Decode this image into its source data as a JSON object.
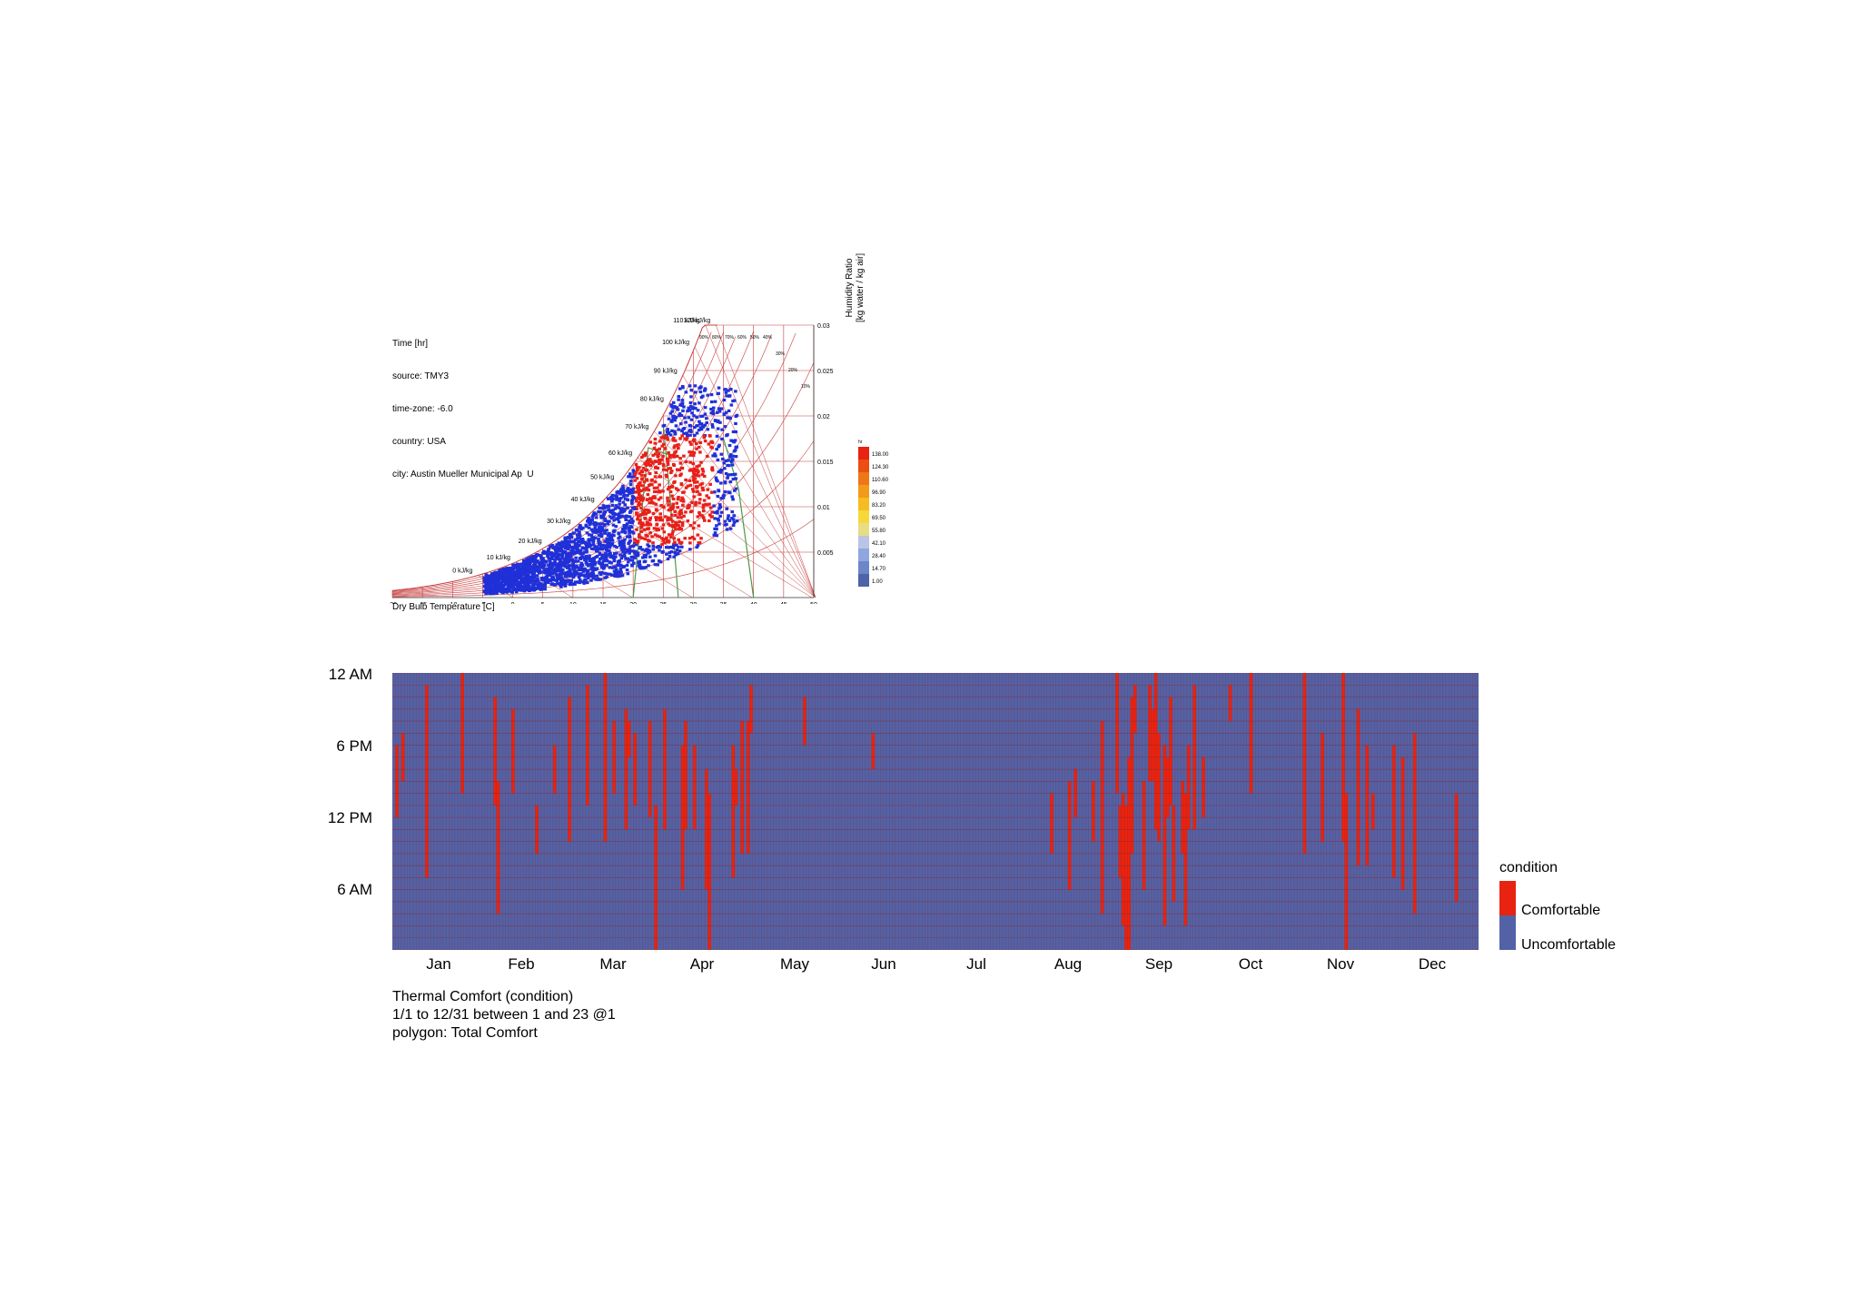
{
  "psychrometric": {
    "info_lines": [
      "Time [hr]",
      "source: TMY3",
      "time-zone: -6.0",
      "country: USA",
      "city: Austin Mueller Municipal Ap  U"
    ],
    "xlabel": "Dry Bulb Temperature [C]",
    "ylabel_line1": "Humidity Ratio",
    "ylabel_line2": "[kg water / kg air]",
    "x_ticks": [
      "-20",
      "-15",
      "-10",
      "-5",
      "0",
      "5",
      "10",
      "15",
      "20",
      "25",
      "30",
      "35",
      "40",
      "45",
      "50"
    ],
    "y_ticks": [
      "0.03",
      "0.025",
      "0.02",
      "0.015",
      "0.01",
      "0.005"
    ],
    "enthalpy_labels": [
      "0 kJ/kg",
      "10 kJ/kg",
      "20 kJ/kg",
      "30 kJ/kg",
      "40 kJ/kg",
      "50 kJ/kg",
      "60 kJ/kg",
      "70 kJ/kg",
      "80 kJ/kg",
      "90 kJ/kg",
      "100 kJ/kg",
      "110 kJ/kg",
      "120 kJ/kg"
    ],
    "rh_labels": [
      "90%",
      "80%",
      "70%",
      "60%",
      "50%",
      "40%",
      "30%",
      "20%",
      "10%"
    ],
    "legend_unit": "hr",
    "legend_values": [
      "138.00",
      "124.30",
      "110.60",
      "96.90",
      "83.20",
      "69.50",
      "55.80",
      "42.10",
      "28.40",
      "14.70",
      "1.00"
    ],
    "legend_colors": [
      "#e8230f",
      "#ea4e12",
      "#ee7715",
      "#f39a1a",
      "#f7bc22",
      "#f7d83a",
      "#e7dd83",
      "#b9c4e6",
      "#8fa6df",
      "#6d86c8",
      "#4f63a8"
    ]
  },
  "heatmap": {
    "y_labels": [
      "12 AM",
      "6 PM",
      "12 PM",
      "6 AM"
    ],
    "months": [
      "Jan",
      "Feb",
      "Mar",
      "Apr",
      "May",
      "Jun",
      "Jul",
      "Aug",
      "Sep",
      "Oct",
      "Nov",
      "Dec"
    ],
    "colors": {
      "comfortable": "#e8230f",
      "uncomfortable": "#5362a6",
      "grid": "#8a2a35"
    }
  },
  "caption": {
    "line1": "Thermal Comfort (condition)",
    "line2": "1/1 to 12/31 between 1 and 23 @1",
    "line3": "polygon: Total Comfort"
  },
  "legend": {
    "title": "condition",
    "items": [
      "Comfortable",
      "Uncomfortable"
    ]
  },
  "chart_data": [
    {
      "type": "scatter",
      "title": "",
      "xlabel": "Dry Bulb Temperature [C]",
      "ylabel": "Humidity Ratio [kg water / kg air]",
      "xlim": [
        -20,
        50
      ],
      "ylim": [
        0,
        0.03
      ],
      "legend_title": "hr",
      "legend_range": [
        1.0,
        138.0
      ]
    },
    {
      "type": "heatmap",
      "x_categories": [
        "Jan",
        "Feb",
        "Mar",
        "Apr",
        "May",
        "Jun",
        "Jul",
        "Aug",
        "Sep",
        "Oct",
        "Nov",
        "Dec"
      ],
      "y_categories": [
        "12 AM",
        "6 PM",
        "12 PM",
        "6 AM"
      ],
      "values": [
        "Comfortable",
        "Uncomfortable"
      ],
      "legend_title": "condition",
      "comfortable_share_by_month": [
        0.04,
        0.06,
        0.17,
        0.2,
        0.1,
        0.03,
        0.01,
        0.08,
        0.3,
        0.07,
        0.07,
        0.09
      ]
    }
  ]
}
